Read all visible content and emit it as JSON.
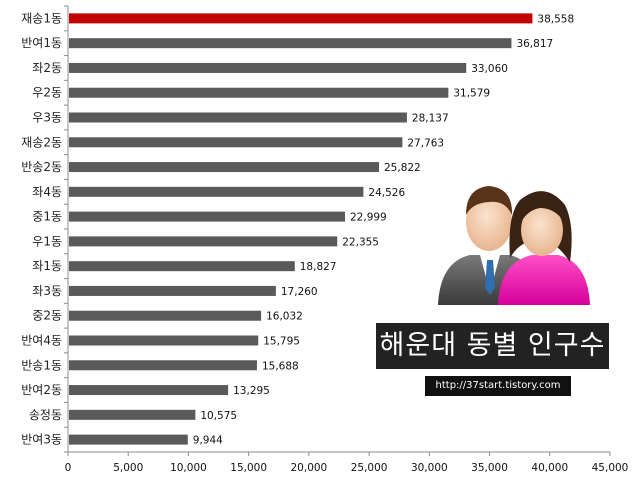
{
  "chart_data": {
    "type": "bar",
    "orientation": "horizontal",
    "categories": [
      "재송1동",
      "반여1동",
      "좌2동",
      "우2동",
      "우3동",
      "재송2동",
      "반송2동",
      "좌4동",
      "중1동",
      "우1동",
      "좌1동",
      "좌3동",
      "중2동",
      "반여4동",
      "반송1동",
      "반여2동",
      "송정동",
      "반여3동"
    ],
    "values": [
      38558,
      36817,
      33060,
      31579,
      28137,
      27763,
      25822,
      24526,
      22999,
      22355,
      18827,
      17260,
      16032,
      15795,
      15688,
      13295,
      10575,
      9944
    ],
    "value_labels": [
      "38,558",
      "36,817",
      "33,060",
      "31,579",
      "28,137",
      "27,763",
      "25,822",
      "24,526",
      "22,999",
      "22,355",
      "18,827",
      "17,260",
      "16,032",
      "15,795",
      "15,688",
      "13,295",
      "10,575",
      "9,944"
    ],
    "xlim": [
      0,
      45000
    ],
    "xticks": [
      0,
      5000,
      10000,
      15000,
      20000,
      25000,
      30000,
      35000,
      40000,
      45000
    ],
    "xtick_labels": [
      "0",
      "5,000",
      "10,000",
      "15,000",
      "20,000",
      "25,000",
      "30,000",
      "35,000",
      "40,000",
      "45,000"
    ],
    "highlight_index": 0,
    "colors": {
      "bar": "#5a5a5a",
      "highlight": "#c00000",
      "axis": "#8c8c8c"
    },
    "grid": false,
    "title": "해운대 동별 인구수"
  },
  "overlay": {
    "title": "해운대 동별 인구수",
    "url": "http://37start.tistory.com",
    "icon": "people-icon"
  }
}
